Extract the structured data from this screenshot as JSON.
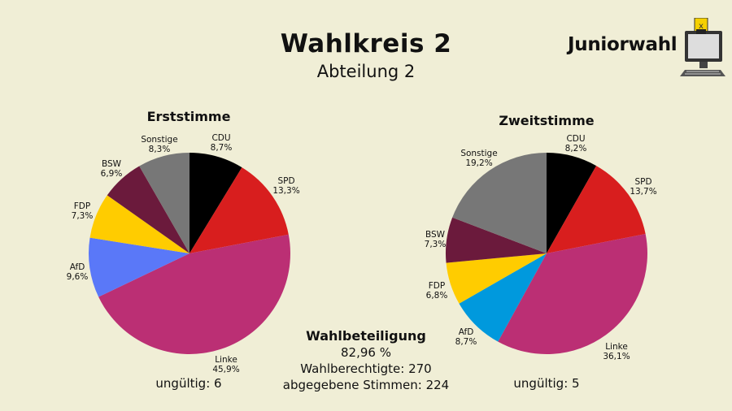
{
  "header": {
    "title": "Wahlkreis 2",
    "subtitle": "Abteilung 2",
    "brand": "Juniorwahl"
  },
  "turnout": {
    "title": "Wahlbeteiligung",
    "percent": "82,96 %",
    "eligible": "Wahlberechtigte: 270",
    "cast": "abgegebene Stimmen: 224"
  },
  "charts": {
    "erst": {
      "title": "Erststimme",
      "invalid": "ungültig: 6"
    },
    "zweit": {
      "title": "Zweitstimme",
      "invalid": "ungültig: 5"
    }
  },
  "chart_data": [
    {
      "type": "pie",
      "title": "Erststimme",
      "slices": [
        {
          "name": "CDU",
          "value": 8.7,
          "label": "8,7%",
          "color": "#000000"
        },
        {
          "name": "SPD",
          "value": 13.3,
          "label": "13,3%",
          "color": "#d81e1e"
        },
        {
          "name": "Linke",
          "value": 45.9,
          "label": "45,9%",
          "color": "#bb2f74"
        },
        {
          "name": "AfD",
          "value": 9.6,
          "label": "9,6%",
          "color": "#5a78f8"
        },
        {
          "name": "FDP",
          "value": 7.3,
          "label": "7,3%",
          "color": "#ffcc00"
        },
        {
          "name": "BSW",
          "value": 6.9,
          "label": "6,9%",
          "color": "#6b1a3c"
        },
        {
          "name": "Sonstige",
          "value": 8.3,
          "label": "8,3%",
          "color": "#777777"
        }
      ],
      "note": "ungültig: 6"
    },
    {
      "type": "pie",
      "title": "Zweitstimme",
      "slices": [
        {
          "name": "CDU",
          "value": 8.2,
          "label": "8,2%",
          "color": "#000000"
        },
        {
          "name": "SPD",
          "value": 13.7,
          "label": "13,7%",
          "color": "#d81e1e"
        },
        {
          "name": "Linke",
          "value": 36.1,
          "label": "36,1%",
          "color": "#bb2f74"
        },
        {
          "name": "AfD",
          "value": 8.7,
          "label": "8,7%",
          "color": "#0099dd"
        },
        {
          "name": "FDP",
          "value": 6.8,
          "label": "6,8%",
          "color": "#ffcc00"
        },
        {
          "name": "BSW",
          "value": 7.3,
          "label": "7,3%",
          "color": "#6b1a3c"
        },
        {
          "name": "Sonstige",
          "value": 19.2,
          "label": "19,2%",
          "color": "#777777"
        }
      ],
      "note": "ungültig: 5"
    }
  ]
}
